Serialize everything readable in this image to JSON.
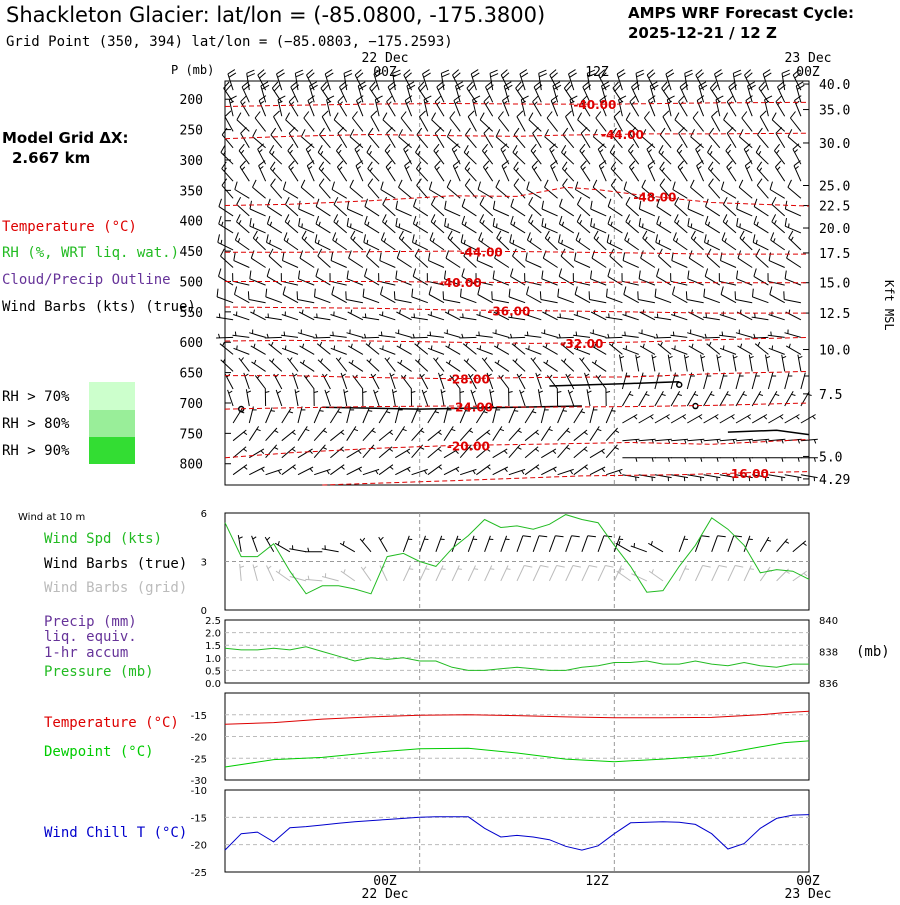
{
  "header": {
    "title": "Shackleton Glacier:  lat/lon = (-85.0800, -175.3800)",
    "grid_point": "Grid Point (350, 394) lat/lon = (−85.0803, −175.2593)",
    "cycle_label": "AMPS WRF Forecast Cycle:",
    "cycle_value": "2025-12-21 / 12  Z",
    "model_grid_label": "Model Grid ΔX:",
    "model_grid_value": "2.667 km"
  },
  "time_axis": {
    "top_labels": [
      "22 Dec",
      "00Z",
      "12Z",
      "23 Dec",
      "00Z"
    ],
    "bottom_labels": [
      "00Z",
      "22 Dec",
      "12Z",
      "00Z",
      "23 Dec"
    ]
  },
  "legend": {
    "temperature": "Temperature (°C)",
    "rh": "RH (%, WRT liq. wat.)",
    "cloud": "Cloud/Precip Outline",
    "wind_barbs": "Wind Barbs (kts) (true)",
    "rh70": "RH > 70%",
    "rh80": "RH > 80%",
    "rh90": "RH > 90%"
  },
  "colors": {
    "temperature": "#dd0000",
    "rh": "#22bb22",
    "cloud": "#663399",
    "dewpoint": "#00cc00",
    "wind_chill": "#0000cc",
    "grey_text": "#bbbbbb",
    "rh70_fill": "#ccffcc",
    "rh80_fill": "#99ee99",
    "rh90_fill": "#33dd33"
  },
  "chart_data": [
    {
      "type": "contour",
      "id": "cross_section",
      "ylabel_left": "P (mb)",
      "ylabel_right": "Kft MSL",
      "pressure_ticks": [
        "200",
        "250",
        "300",
        "350",
        "400",
        "450",
        "500",
        "550",
        "600",
        "650",
        "700",
        "750",
        "800"
      ],
      "pressure_values": [
        200,
        250,
        300,
        350,
        400,
        450,
        500,
        550,
        600,
        650,
        700,
        750,
        800
      ],
      "height_ticks": [
        "40.0",
        "35.0",
        "30.0",
        "25.0",
        "22.5",
        "20.0",
        "17.5",
        "15.0",
        "12.5",
        "10.0",
        "7.5",
        "5.0",
        "4.29"
      ],
      "height_pressures": [
        175,
        217,
        272,
        342,
        375,
        412,
        453,
        502,
        552,
        612,
        685,
        788,
        825
      ],
      "ylim": [
        170,
        835
      ],
      "xlim_hours": [
        0,
        36
      ],
      "temperature_contours": [
        {
          "label": "-40.00",
          "hours": [
            0,
            4,
            9,
            14,
            19,
            24,
            30,
            36
          ],
          "pressures": [
            212,
            210,
            208,
            207,
            208,
            208,
            206,
            205
          ],
          "label_hour": 22.8
        },
        {
          "label": "-44.00",
          "hours": [
            0,
            4,
            9,
            14,
            18,
            21,
            26,
            30,
            36
          ],
          "pressures": [
            265,
            261,
            258,
            260,
            261,
            259,
            257,
            257,
            256
          ],
          "label_hour": 24.5
        },
        {
          "label": "-48.00",
          "hours": [
            0,
            4,
            9,
            14,
            18,
            21,
            23,
            26,
            30,
            36
          ],
          "pressures": [
            375,
            373,
            367,
            359,
            360,
            345,
            349,
            359,
            370,
            376
          ],
          "label_hour": 26.5
        },
        {
          "label": "-44.00",
          "hours": [
            0,
            4,
            9,
            14,
            19,
            25,
            30,
            36
          ],
          "pressures": [
            452,
            452,
            451,
            450,
            451,
            453,
            455,
            455
          ],
          "label_hour": 15.8
        },
        {
          "label": "-40.00",
          "hours": [
            0,
            4,
            9,
            14,
            19,
            25,
            30,
            36
          ],
          "pressures": [
            500,
            500,
            500,
            501,
            502,
            501,
            502,
            502
          ],
          "label_hour": 14.5
        },
        {
          "label": "-36.00",
          "hours": [
            0,
            4,
            9,
            14,
            19,
            25,
            30,
            36
          ],
          "pressures": [
            542,
            543,
            544,
            547,
            548,
            550,
            552,
            552
          ],
          "label_hour": 17.5
        },
        {
          "label": "-32.00",
          "hours": [
            0,
            4,
            9,
            14,
            19,
            25,
            30,
            36
          ],
          "pressures": [
            598,
            597,
            598,
            600,
            602,
            600,
            596,
            592
          ],
          "label_hour": 22.0
        },
        {
          "label": "-28.00",
          "hours": [
            0,
            4,
            9,
            14,
            19,
            25,
            30,
            36
          ],
          "pressures": [
            655,
            655,
            658,
            660,
            658,
            657,
            652,
            648
          ],
          "label_hour": 15.0
        },
        {
          "label": "-24.00",
          "hours": [
            0,
            4,
            9,
            14,
            19,
            25,
            30,
            36
          ],
          "pressures": [
            710,
            708,
            706,
            705,
            707,
            706,
            704,
            700
          ],
          "label_hour": 15.2
        },
        {
          "label": "-20.00",
          "hours": [
            0,
            4,
            9,
            14,
            19,
            25,
            30,
            36
          ],
          "pressures": [
            790,
            782,
            775,
            770,
            768,
            765,
            768,
            760
          ],
          "label_hour": 15.0
        },
        {
          "label": "-16.00",
          "hours": [
            6,
            14,
            22,
            28,
            32,
            36
          ],
          "pressures": [
            835,
            828,
            820,
            818,
            815,
            813
          ],
          "label_hour": 32.2
        }
      ],
      "wind_barbs": {
        "hours_start": 0,
        "hours_step": 1,
        "levels": [
          {
            "p": 185,
            "dir": 345,
            "spd": 20
          },
          {
            "p": 205,
            "dir": 335,
            "spd": 20
          },
          {
            "p": 228,
            "dir": 335,
            "spd": 15
          },
          {
            "p": 253,
            "dir": 325,
            "spd": 10
          },
          {
            "p": 280,
            "dir": 320,
            "spd": 10
          },
          {
            "p": 307,
            "dir": 320,
            "spd": 15
          },
          {
            "p": 335,
            "dir": 330,
            "spd": 15
          },
          {
            "p": 363,
            "dir": 310,
            "spd": 10
          },
          {
            "p": 392,
            "dir": 300,
            "spd": 10
          },
          {
            "p": 420,
            "dir": 305,
            "spd": 15
          },
          {
            "p": 448,
            "dir": 305,
            "spd": 15
          },
          {
            "p": 477,
            "dir": 300,
            "spd": 10
          },
          {
            "p": 506,
            "dir": 295,
            "spd": 10
          },
          {
            "p": 535,
            "dir": 290,
            "spd": 10
          },
          {
            "p": 563,
            "dir": 285,
            "spd": 5
          },
          {
            "p": 592,
            "dir": 280,
            "spd": 5
          },
          {
            "p": 620,
            "dir": 300,
            "spd": 5
          },
          {
            "p": 648,
            "dir": 310,
            "spd": 5
          },
          {
            "p": 677,
            "dir": 335,
            "spd": 5
          },
          {
            "p": 705,
            "dir": 350,
            "spd": 5
          },
          {
            "p": 733,
            "dir": 20,
            "spd": 5
          },
          {
            "p": 762,
            "dir": 45,
            "spd": 5
          },
          {
            "p": 790,
            "dir": 50,
            "spd": 5
          },
          {
            "p": 818,
            "dir": 60,
            "spd": 5
          }
        ]
      },
      "cloud_markers": [
        {
          "hour": 1.0,
          "p": 710
        },
        {
          "hour": 28.0,
          "p": 670
        },
        {
          "hour": 29.0,
          "p": 705
        }
      ],
      "cloud_streaks": [
        {
          "hours": [
            6,
            12,
            22
          ],
          "pressures": [
            707,
            710,
            705
          ]
        },
        {
          "hours": [
            20,
            25,
            28
          ],
          "pressures": [
            672,
            668,
            665
          ]
        },
        {
          "hours": [
            31,
            34,
            36
          ],
          "pressures": [
            748,
            745,
            752
          ]
        }
      ]
    },
    {
      "type": "line",
      "id": "wind10m",
      "title": "Wind at 10 m",
      "series_labels": [
        "Wind Spd (kts)",
        "Wind Barbs (true)",
        "Wind Barbs (grid)"
      ],
      "ytick_labels": [
        "6",
        "3",
        "0"
      ],
      "ylim": [
        0,
        6
      ],
      "hours": [
        0,
        1,
        2,
        3,
        4,
        5,
        6,
        7,
        8,
        9,
        10,
        11,
        12,
        13,
        14,
        15,
        16,
        17,
        18,
        19,
        20,
        21,
        22,
        23,
        24,
        25,
        26,
        27,
        28,
        29,
        30,
        31,
        32,
        33,
        34,
        35,
        36
      ],
      "wind_speed": [
        5.4,
        3.3,
        3.3,
        4.1,
        2.4,
        1.0,
        1.5,
        1.5,
        1.3,
        1.0,
        3.3,
        3.5,
        3.0,
        2.7,
        3.8,
        4.6,
        5.6,
        5.1,
        5.2,
        5.0,
        5.3,
        5.9,
        5.6,
        5.4,
        4.0,
        2.7,
        1.1,
        1.2,
        2.7,
        4.0,
        5.7,
        5.0,
        4.0,
        2.3,
        2.5,
        2.4,
        1.9
      ],
      "barb_dirs_true": [
        350,
        350,
        340,
        330,
        300,
        280,
        270,
        280,
        300,
        320,
        330,
        20,
        20,
        20,
        20,
        20,
        20,
        20,
        20,
        20,
        20,
        20,
        20,
        20,
        20,
        300,
        290,
        300,
        20,
        20,
        20,
        20,
        20,
        30,
        40,
        50,
        60
      ],
      "barb_speeds_true": [
        5,
        5,
        5,
        5,
        5,
        5,
        5,
        5,
        5,
        5,
        5,
        5,
        5,
        5,
        5,
        5,
        5,
        5,
        10,
        10,
        10,
        10,
        10,
        10,
        5,
        5,
        5,
        5,
        5,
        10,
        10,
        10,
        5,
        5,
        5,
        5,
        5
      ],
      "barb_dir_grid_offset": 5
    },
    {
      "type": "line",
      "id": "precip_pressure",
      "series_labels": [
        "Precip (mm)",
        "liq. equiv.",
        "1-hr accum",
        "Pressure (mb)"
      ],
      "ytick_labels_left": [
        "2.5",
        "2.0",
        "1.5",
        "1.0",
        "0.5",
        "0.0"
      ],
      "ylim_left": [
        0,
        2.5
      ],
      "ytick_labels_right": [
        "840",
        "838",
        "836"
      ],
      "right_axis_label": "(mb)",
      "ylim_right": [
        836,
        840
      ],
      "hours": [
        0,
        1,
        2,
        3,
        4,
        5,
        6,
        7,
        8,
        9,
        10,
        11,
        12,
        13,
        14,
        15,
        16,
        17,
        18,
        19,
        20,
        21,
        22,
        23,
        24,
        25,
        26,
        27,
        28,
        29,
        30,
        31,
        32,
        33,
        34,
        35,
        36
      ],
      "pressure": [
        838.2,
        838.1,
        838.1,
        838.2,
        838.1,
        838.3,
        838.0,
        837.7,
        837.4,
        837.6,
        837.5,
        837.6,
        837.4,
        837.4,
        837.0,
        836.8,
        836.8,
        836.9,
        837.0,
        836.9,
        836.8,
        836.8,
        837.0,
        837.1,
        837.3,
        837.3,
        837.4,
        837.2,
        837.2,
        837.4,
        837.2,
        837.1,
        837.3,
        837.1,
        837.0,
        837.2,
        837.2
      ],
      "precip": []
    },
    {
      "type": "line",
      "id": "temp_dew",
      "series_labels": [
        "Temperature (°C)",
        "Dewpoint (°C)"
      ],
      "ytick_labels": [
        "-15",
        "-20",
        "-25",
        "-30"
      ],
      "ylim": [
        -30,
        -10
      ],
      "hours": [
        0,
        3,
        6,
        9,
        12,
        15,
        18,
        21,
        24,
        27,
        30,
        33,
        34.5,
        36
      ],
      "temperature": [
        -17.2,
        -16.8,
        -16.0,
        -15.5,
        -15.1,
        -15.0,
        -15.2,
        -15.5,
        -15.7,
        -15.7,
        -15.6,
        -15.0,
        -14.5,
        -14.2
      ],
      "dewpoint": [
        -27.0,
        -25.3,
        -24.8,
        -23.7,
        -22.8,
        -22.7,
        -23.8,
        -25.2,
        -25.8,
        -25.2,
        -24.4,
        -22.4,
        -21.4,
        -21.0
      ]
    },
    {
      "type": "line",
      "id": "wind_chill",
      "series_labels": [
        "Wind Chill T (°C)"
      ],
      "ytick_labels": [
        "-10",
        "-15",
        "-20",
        "-25"
      ],
      "ylim": [
        -25,
        -10
      ],
      "hours": [
        0,
        1,
        2,
        3,
        4,
        5,
        6,
        7,
        8,
        9,
        10,
        11,
        12,
        13,
        14,
        15,
        16,
        17,
        18,
        19,
        20,
        21,
        22,
        23,
        24,
        25,
        26,
        27,
        28,
        29,
        30,
        31,
        32,
        33,
        34,
        35,
        36
      ],
      "wind_chill": [
        -21.0,
        -18.0,
        -17.7,
        -19.5,
        -16.9,
        -16.7,
        -16.4,
        -16.1,
        -15.8,
        -15.6,
        -15.4,
        -15.2,
        -15.0,
        -14.9,
        -14.9,
        -14.9,
        -17.0,
        -18.6,
        -18.3,
        -18.6,
        -19.1,
        -20.3,
        -21.0,
        -20.2,
        -18.0,
        -16.0,
        -15.9,
        -15.8,
        -15.9,
        -16.3,
        -18.0,
        -20.8,
        -19.8,
        -17.0,
        -15.2,
        -14.6,
        -14.5
      ]
    }
  ]
}
